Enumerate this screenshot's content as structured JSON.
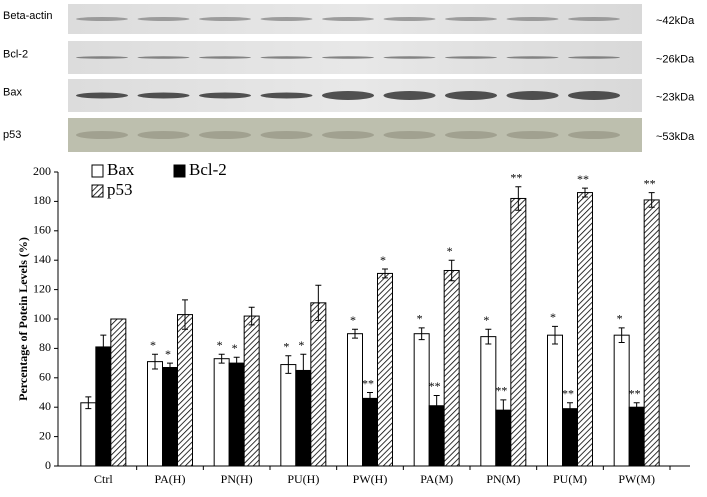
{
  "blots": [
    {
      "label": "Beta-actin",
      "size": "~42kDa"
    },
    {
      "label": "Bcl-2",
      "size": "~26kDa"
    },
    {
      "label": "Bax",
      "size": "~23kDa"
    },
    {
      "label": "p53",
      "size": "~53kDa"
    }
  ],
  "chart_data": {
    "type": "bar",
    "y_label": "Percentage of Potein Levels (%)",
    "categories": [
      "Ctrl",
      "PA(H)",
      "PN(H)",
      "PU(H)",
      "PW(H)",
      "PA(M)",
      "PN(M)",
      "PU(M)",
      "PW(M)"
    ],
    "series": [
      {
        "name": "Bax",
        "color": "#ffffff",
        "pattern": "solid",
        "values": [
          43,
          71,
          73,
          69,
          90,
          90,
          88,
          89,
          89
        ],
        "errors": [
          4,
          5,
          3,
          6,
          3,
          4,
          5,
          6,
          5
        ],
        "labels": [
          null,
          "*",
          "*",
          "*",
          "*",
          "*",
          "*",
          "*",
          "*"
        ]
      },
      {
        "name": "Bcl-2",
        "color": "#000000",
        "pattern": "solid",
        "values": [
          81,
          67,
          70,
          65,
          46,
          41,
          38,
          39,
          40
        ],
        "errors": [
          8,
          3,
          4,
          11,
          4,
          7,
          7,
          4,
          3
        ],
        "labels": [
          null,
          "*",
          "*",
          "*",
          "**",
          "**",
          "**",
          "**",
          "**"
        ]
      },
      {
        "name": "p53",
        "color": "#ffffff",
        "pattern": "diagonal-hatch",
        "values": [
          100,
          103,
          102,
          111,
          131,
          133,
          182,
          186,
          181
        ],
        "errors": [
          0,
          10,
          6,
          12,
          3,
          7,
          8,
          3,
          5
        ],
        "labels": [
          null,
          null,
          null,
          null,
          "*",
          "*",
          "**",
          "**",
          "**"
        ]
      }
    ],
    "ylim": [
      0,
      200
    ],
    "yticks": [
      0,
      20,
      40,
      60,
      80,
      100,
      120,
      140,
      160,
      180,
      200
    ],
    "grid": false,
    "legend": "top-left"
  }
}
